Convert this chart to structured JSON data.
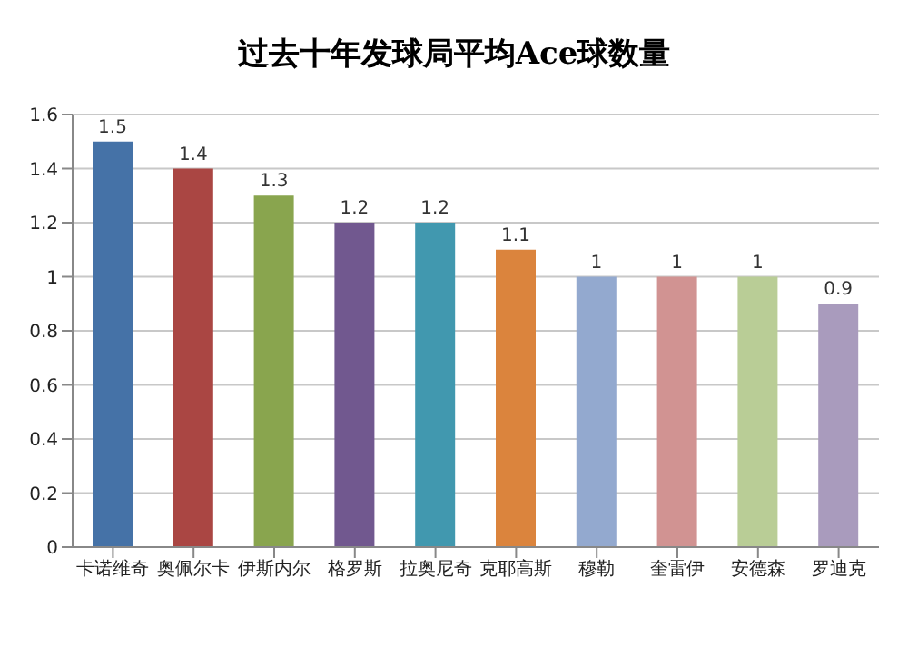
{
  "chart_data": {
    "type": "bar",
    "title": "过去十年发球局平均Ace球数量",
    "categories": [
      "卡诺维奇",
      "奥佩尔卡",
      "伊斯内尔",
      "格罗斯",
      "拉奥尼奇",
      "克耶高斯",
      "穆勒",
      "奎雷伊",
      "安德森",
      "罗迪克"
    ],
    "values": [
      1.5,
      1.4,
      1.3,
      1.2,
      1.2,
      1.1,
      1,
      1,
      1,
      0.9
    ],
    "colors": [
      "#4572a7",
      "#aa4643",
      "#89a54e",
      "#71588f",
      "#4198af",
      "#db843d",
      "#93a9cf",
      "#d19392",
      "#b9cd96",
      "#a99bbd"
    ],
    "ylim": [
      0,
      1.6
    ],
    "yticks": [
      0,
      0.2,
      0.4,
      0.6,
      0.8,
      1,
      1.2,
      1.4,
      1.6
    ],
    "grid": "y",
    "data_labels": true
  }
}
